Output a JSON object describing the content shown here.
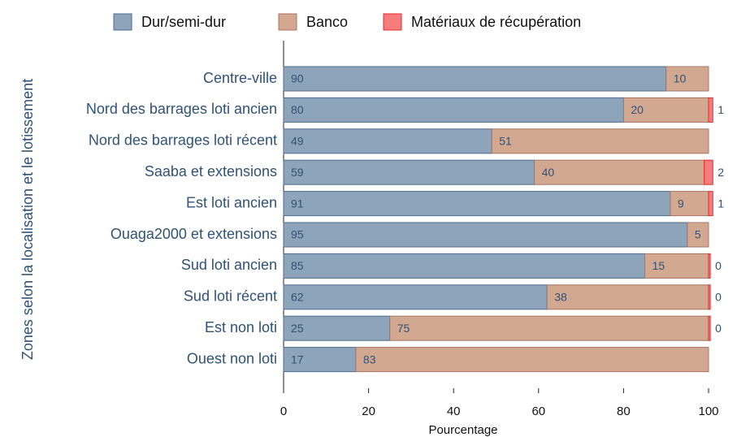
{
  "chart_data": {
    "type": "stacked-bar-horizontal",
    "x_label": "Pourcentage",
    "y_label": "Zones selon la localisation et le lotissement",
    "categories": [
      "Centre-ville",
      "Nord des barrages loti ancien",
      "Nord des barrages loti récent",
      "Saaba et extensions",
      "Est loti ancien",
      "Ouaga2000 et extensions",
      "Sud loti ancien",
      "Sud loti récent",
      "Est non loti",
      "Ouest non loti"
    ],
    "series": [
      {
        "name": "Dur/semi-dur",
        "color": "#8ea4ba",
        "values": [
          90,
          80,
          49,
          59,
          91,
          95,
          85,
          62,
          25,
          17
        ]
      },
      {
        "name": "Banco",
        "color": "#d3a891",
        "values": [
          10,
          20,
          51,
          40,
          9,
          5,
          15,
          38,
          75,
          83
        ]
      },
      {
        "name": "Matériaux de récupération",
        "color": "#f77c7c",
        "values": [
          0,
          1,
          0,
          2,
          1,
          0,
          0.4,
          0.4,
          0.4,
          0
        ],
        "value_labels": [
          null,
          "1",
          null,
          "2",
          "1",
          null,
          "0",
          "0",
          "0",
          null
        ]
      }
    ],
    "xlim": [
      0,
      100
    ],
    "xticks": [
      0,
      20,
      40,
      60,
      80,
      100
    ]
  }
}
